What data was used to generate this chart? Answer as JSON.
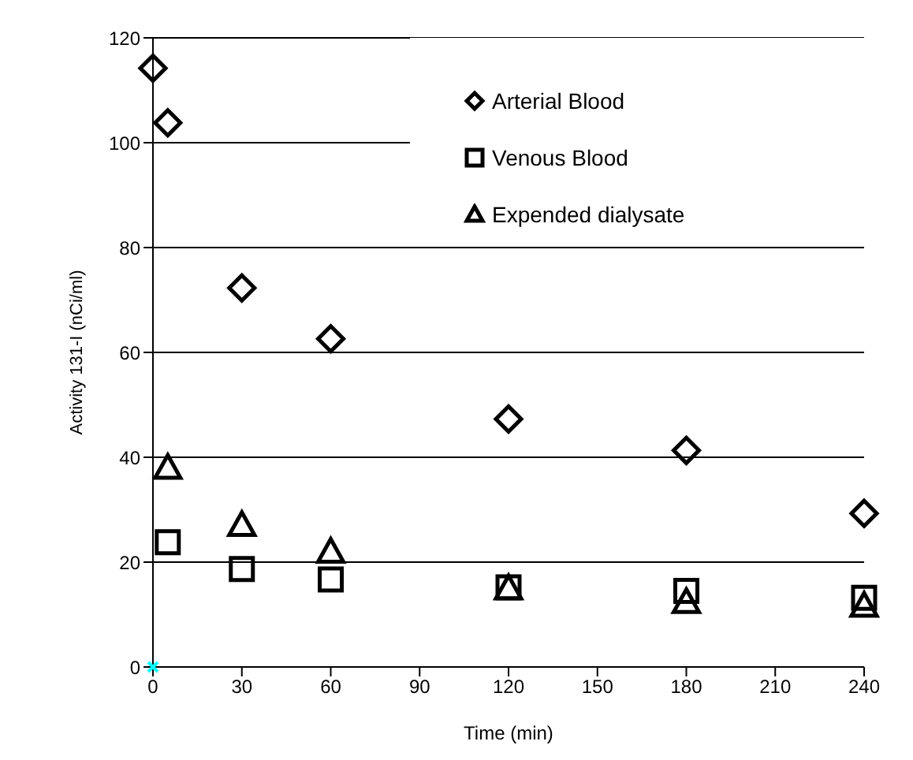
{
  "chart_data": {
    "type": "scatter",
    "xlabel": "Time (min)",
    "ylabel": "Activity 131-I (nCi/ml)",
    "xlim": [
      0,
      240
    ],
    "xticks": [
      0,
      30,
      60,
      90,
      120,
      150,
      180,
      210,
      240
    ],
    "ylim": [
      0,
      120
    ],
    "yticks": [
      0,
      20,
      40,
      60,
      80,
      100,
      120
    ],
    "grid": "y",
    "legend": "top right",
    "series": [
      {
        "name": "Arterial Blood",
        "color": "#000000",
        "marker": "diamond",
        "x": [
          0,
          5,
          30,
          60,
          120,
          180,
          240
        ],
        "values": [
          114.2,
          103.8,
          72.3,
          62.6,
          47.3,
          41.3,
          29.3
        ]
      },
      {
        "name": "Venous Blood",
        "color": "#000000",
        "marker": "square",
        "x": [
          5,
          30,
          60,
          120,
          180,
          240
        ],
        "values": [
          23.8,
          18.7,
          16.7,
          15.2,
          14.5,
          13.2
        ]
      },
      {
        "name": "Expended dialysate",
        "color": "#000000",
        "marker": "triangle",
        "x": [
          5,
          30,
          60,
          120,
          180,
          240
        ],
        "values": [
          38,
          27.1,
          22,
          15,
          12.4,
          11.7
        ]
      },
      {
        "color": "#00ffff",
        "marker": "cross",
        "x": [
          0
        ],
        "values": [
          0
        ]
      }
    ]
  }
}
